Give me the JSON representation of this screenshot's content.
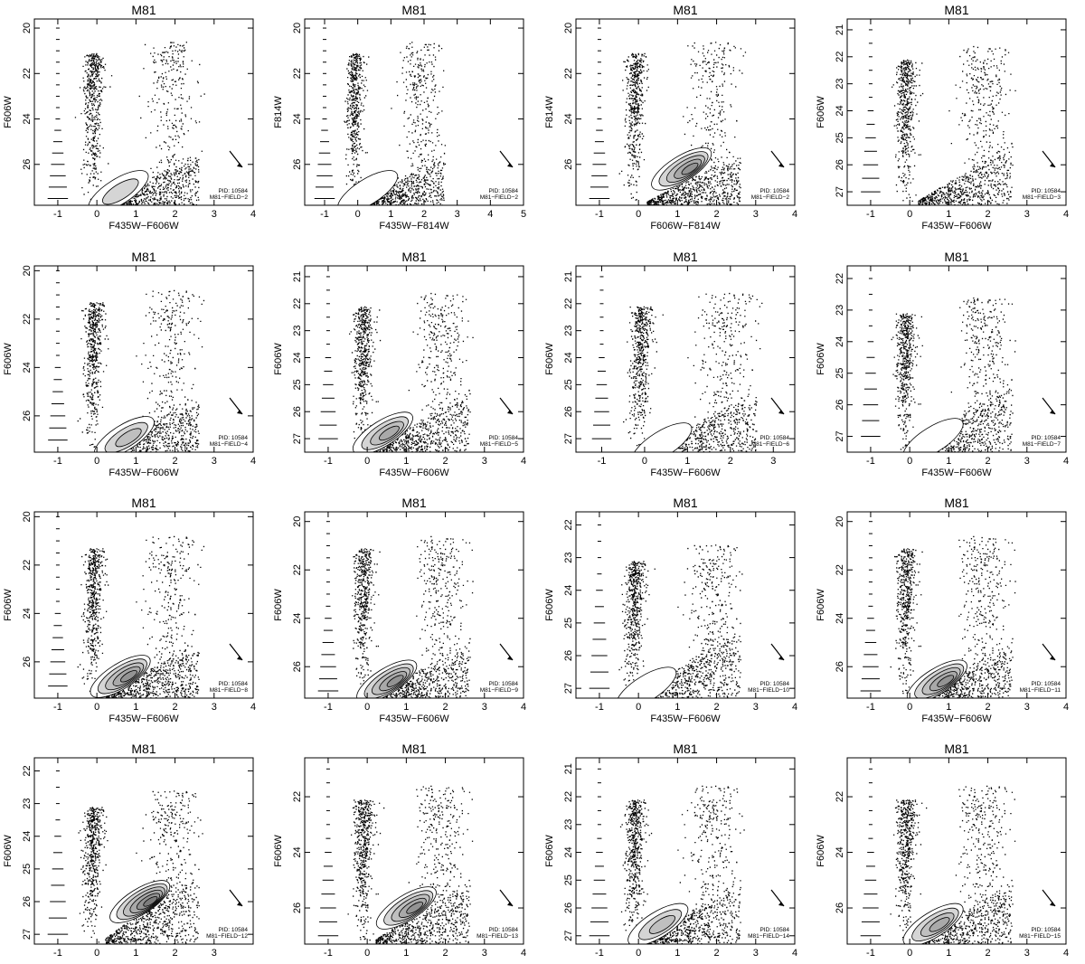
{
  "chart_data": [
    {
      "type": "scatter",
      "title": "M81",
      "xlabel": "F435W−F606W",
      "ylabel": "F606W",
      "xlim": [
        -1.6,
        4.0
      ],
      "ylim": [
        27.8,
        19.6
      ],
      "xticks": [
        "-1",
        "0",
        "1",
        "2",
        "3",
        "4"
      ],
      "yticks": [
        "20",
        "22",
        "24",
        "26"
      ],
      "annotation": [
        "PID: 10584",
        "M81−FIELD−2"
      ],
      "contour_levels": 2,
      "contour_center": [
        0.55,
        27.2
      ]
    },
    {
      "type": "scatter",
      "title": "M81",
      "xlabel": "F435W−F814W",
      "ylabel": "F814W",
      "xlim": [
        -1.6,
        5.0
      ],
      "ylim": [
        27.8,
        19.6
      ],
      "xticks": [
        "-1",
        "0",
        "1",
        "2",
        "3",
        "4",
        "5"
      ],
      "yticks": [
        "20",
        "22",
        "24",
        "26"
      ],
      "annotation": [
        "PID: 10584",
        "M81−FIELD−2"
      ],
      "contour_levels": 1,
      "contour_center": [
        0.3,
        27.2
      ]
    },
    {
      "type": "scatter",
      "title": "M81",
      "xlabel": "F606W−F814W",
      "ylabel": "F814W",
      "xlim": [
        -1.6,
        4.0
      ],
      "ylim": [
        27.8,
        19.6
      ],
      "xticks": [
        "-1",
        "0",
        "1",
        "2",
        "3",
        "4"
      ],
      "yticks": [
        "20",
        "22",
        "24",
        "26"
      ],
      "annotation": [
        "PID: 10584",
        "M81−FIELD−2"
      ],
      "contour_levels": 5,
      "contour_center": [
        1.1,
        26.2
      ]
    },
    {
      "type": "scatter",
      "title": "M81",
      "xlabel": "F435W−F606W",
      "ylabel": "F606W",
      "xlim": [
        -1.6,
        4.0
      ],
      "ylim": [
        27.5,
        20.6
      ],
      "xticks": [
        "-1",
        "0",
        "1",
        "2",
        "3",
        "4"
      ],
      "yticks": [
        "21",
        "22",
        "23",
        "24",
        "25",
        "26",
        "27"
      ],
      "annotation": [
        "PID: 10584",
        "M81−FIELD−3"
      ],
      "contour_levels": 0,
      "contour_center": [
        0.5,
        27.2
      ]
    },
    {
      "type": "scatter",
      "title": "M81",
      "xlabel": "F435W−F606W",
      "ylabel": "F606W",
      "xlim": [
        -1.6,
        4.0
      ],
      "ylim": [
        27.5,
        19.8
      ],
      "xticks": [
        "-1",
        "0",
        "1",
        "2",
        "3",
        "4"
      ],
      "yticks": [
        "20",
        "22",
        "24",
        "26"
      ],
      "annotation": [
        "PID: 10584",
        "M81−FIELD−4"
      ],
      "contour_levels": 3,
      "contour_center": [
        0.7,
        26.9
      ]
    },
    {
      "type": "scatter",
      "title": "M81",
      "xlabel": "F435W−F606W",
      "ylabel": "F606W",
      "xlim": [
        -1.6,
        4.0
      ],
      "ylim": [
        27.5,
        20.6
      ],
      "xticks": [
        "-1",
        "0",
        "1",
        "2",
        "3",
        "4"
      ],
      "yticks": [
        "21",
        "22",
        "23",
        "24",
        "25",
        "26",
        "27"
      ],
      "annotation": [
        "PID: 10584",
        "M81−FIELD−5"
      ],
      "contour_levels": 4,
      "contour_center": [
        0.4,
        26.8
      ]
    },
    {
      "type": "scatter",
      "title": "M81",
      "xlabel": "F435W−F606W",
      "ylabel": "F606W",
      "xlim": [
        -1.6,
        3.5
      ],
      "ylim": [
        27.5,
        20.6
      ],
      "xticks": [
        "-1",
        "0",
        "1",
        "2",
        "3"
      ],
      "yticks": [
        "21",
        "22",
        "23",
        "24",
        "25",
        "26",
        "27"
      ],
      "annotation": [
        "PID: 10584",
        "M81−FIELD−6"
      ],
      "contour_levels": 1,
      "contour_center": [
        0.4,
        27.2
      ]
    },
    {
      "type": "scatter",
      "title": "M81",
      "xlabel": "F435W−F606W",
      "ylabel": "F606W",
      "xlim": [
        -1.6,
        4.0
      ],
      "ylim": [
        27.5,
        21.6
      ],
      "xticks": [
        "-1",
        "0",
        "1",
        "2",
        "3",
        "4"
      ],
      "yticks": [
        "22",
        "23",
        "24",
        "25",
        "26",
        "27"
      ],
      "annotation": [
        "PID: 10584",
        "M81−FIELD−7"
      ],
      "contour_levels": 1,
      "contour_center": [
        0.6,
        27.1
      ]
    },
    {
      "type": "scatter",
      "title": "M81",
      "xlabel": "F435W−F606W",
      "ylabel": "F606W",
      "xlim": [
        -1.6,
        4.0
      ],
      "ylim": [
        27.5,
        19.8
      ],
      "xticks": [
        "-1",
        "0",
        "1",
        "2",
        "3",
        "4"
      ],
      "yticks": [
        "20",
        "22",
        "24",
        "26"
      ],
      "annotation": [
        "PID: 10584",
        "M81−FIELD−8"
      ],
      "contour_levels": 5,
      "contour_center": [
        0.6,
        26.6
      ]
    },
    {
      "type": "scatter",
      "title": "M81",
      "xlabel": "F435W−F606W",
      "ylabel": "F606W",
      "xlim": [
        -1.6,
        4.0
      ],
      "ylim": [
        27.3,
        19.6
      ],
      "xticks": [
        "-1",
        "0",
        "1",
        "2",
        "3",
        "4"
      ],
      "yticks": [
        "20",
        "22",
        "24",
        "26"
      ],
      "annotation": [
        "PID: 10584",
        "M81−FIELD−9"
      ],
      "contour_levels": 5,
      "contour_center": [
        0.5,
        26.6
      ]
    },
    {
      "type": "scatter",
      "title": "M81",
      "xlabel": "F435W−F606W",
      "ylabel": "F606W",
      "xlim": [
        -1.6,
        4.0
      ],
      "ylim": [
        27.3,
        21.6
      ],
      "xticks": [
        "-1",
        "0",
        "1",
        "2",
        "3",
        "4"
      ],
      "yticks": [
        "22",
        "23",
        "24",
        "25",
        "26",
        "27"
      ],
      "annotation": [
        "PID: 10584",
        "M81−FIELD−10"
      ],
      "contour_levels": 1,
      "contour_center": [
        0.2,
        27.0
      ]
    },
    {
      "type": "scatter",
      "title": "M81",
      "xlabel": "F435W−F606W",
      "ylabel": "F606W",
      "xlim": [
        -1.6,
        4.0
      ],
      "ylim": [
        27.3,
        19.6
      ],
      "xticks": [
        "-1",
        "0",
        "1",
        "2",
        "3",
        "4"
      ],
      "yticks": [
        "20",
        "22",
        "24",
        "26"
      ],
      "annotation": [
        "PID: 10584",
        "M81−FIELD−11"
      ],
      "contour_levels": 5,
      "contour_center": [
        0.7,
        26.6
      ]
    },
    {
      "type": "scatter",
      "title": "M81",
      "xlabel": "F435W−F606W",
      "ylabel": "F606W",
      "xlim": [
        -1.6,
        4.0
      ],
      "ylim": [
        27.3,
        21.6
      ],
      "xticks": [
        "-1",
        "0",
        "1",
        "2",
        "3"
      ],
      "yticks": [
        "22",
        "23",
        "24",
        "25",
        "26",
        "27"
      ],
      "annotation": [
        "PID: 10584",
        "M81−FIELD−12"
      ],
      "contour_levels": 6,
      "contour_center": [
        1.1,
        26.0
      ]
    },
    {
      "type": "scatter",
      "title": "M81",
      "xlabel": "F435W−F606W",
      "ylabel": "F606W",
      "xlim": [
        -1.6,
        4.0
      ],
      "ylim": [
        27.3,
        20.6
      ],
      "xticks": [
        "-1",
        "0",
        "1",
        "2",
        "3",
        "4"
      ],
      "yticks": [
        "22",
        "24",
        "26"
      ],
      "annotation": [
        "PID: 10584",
        "M81−FIELD−13"
      ],
      "contour_levels": 5,
      "contour_center": [
        1.0,
        26.0
      ]
    },
    {
      "type": "scatter",
      "title": "M81",
      "xlabel": "F435W−F606W",
      "ylabel": "F606W",
      "xlim": [
        -1.6,
        4.0
      ],
      "ylim": [
        27.3,
        20.6
      ],
      "xticks": [
        "-1",
        "0",
        "1",
        "2",
        "3",
        "4"
      ],
      "yticks": [
        "21",
        "22",
        "23",
        "24",
        "25",
        "26",
        "27"
      ],
      "annotation": [
        "PID: 10584",
        "M81−FIELD−14"
      ],
      "contour_levels": 3,
      "contour_center": [
        0.5,
        26.6
      ]
    },
    {
      "type": "scatter",
      "title": "M81",
      "xlabel": "F435W−F606W",
      "ylabel": "F606W",
      "xlim": [
        -1.6,
        4.0
      ],
      "ylim": [
        27.3,
        20.6
      ],
      "xticks": [
        "-1",
        "0",
        "1",
        "2",
        "3",
        "4"
      ],
      "yticks": [
        "22",
        "24",
        "26"
      ],
      "annotation": [
        "PID: 10584",
        "M81−FIELD−15"
      ],
      "contour_levels": 4,
      "contour_center": [
        0.6,
        26.6
      ]
    }
  ]
}
